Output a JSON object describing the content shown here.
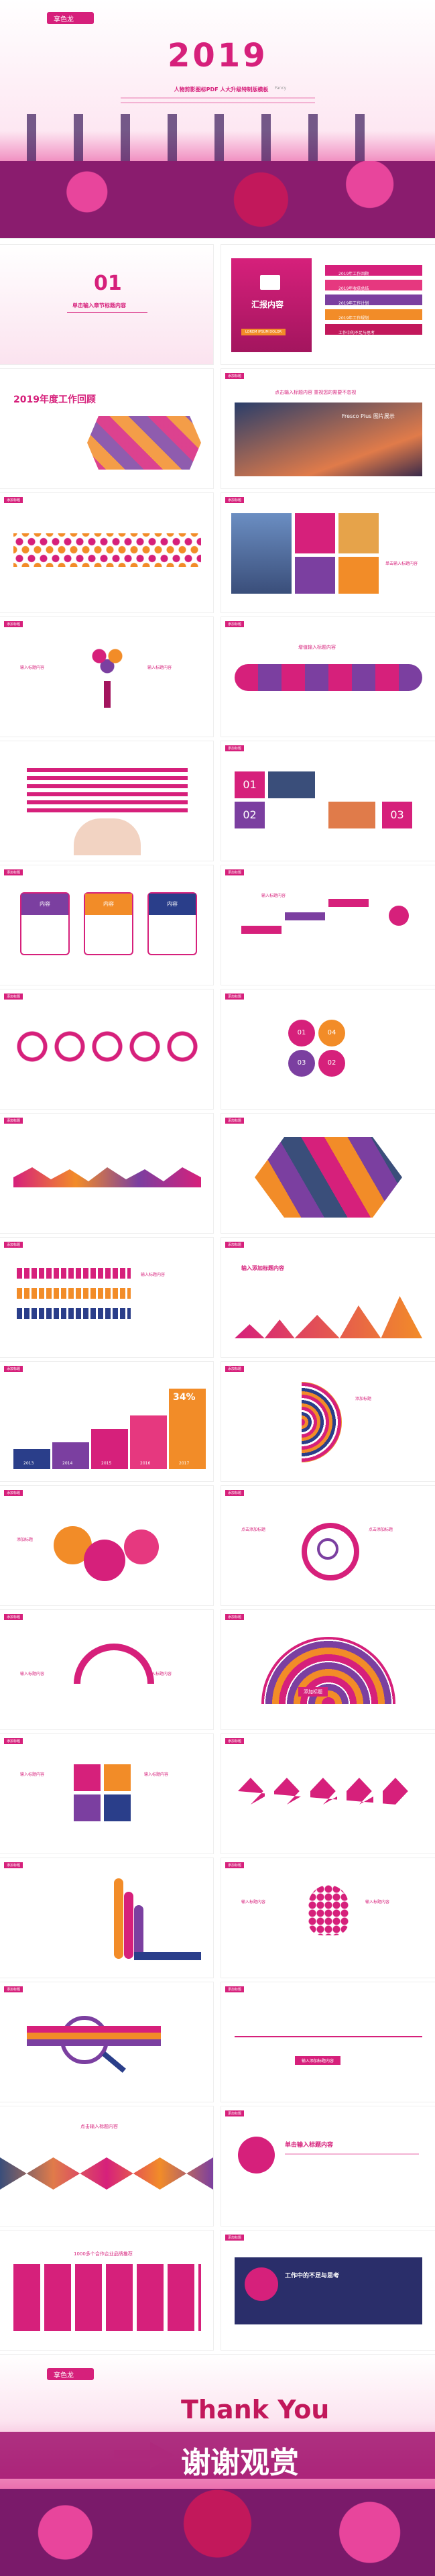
{
  "cover": {
    "brand": "享色龙",
    "year": "2019",
    "headline": "人物剪影图标PDF 人大升级特制版模板",
    "subline": "Fancy"
  },
  "toc": {
    "section_number": "01",
    "section_title": "单击输入章节标题内容",
    "report_label": "汇报内容",
    "report_sub": "LOREM IPSUM DOLOR",
    "items": [
      "2019年工作回顾",
      "2019年收获总结",
      "2019年工作计划",
      "2019年工作规划",
      "工作中的不足与思考"
    ]
  },
  "slide_tag": "添加标题",
  "labels": {
    "review_title": "2019年度工作回顾",
    "photo_caption": "点击输入标题内容 重视您的需要不忽视",
    "photo_sub": "Fresco Plus 图片展示",
    "input_title": "输入标题内容",
    "click_text": "单击输入标题内容",
    "content": "内容",
    "intro_title": "增值输入标题内容",
    "year_percent": "34%",
    "years": [
      "2013",
      "2014",
      "2015",
      "2016",
      "2017"
    ],
    "enter_title": "输入添加标题内容",
    "add_title": "添加标题",
    "numbers": [
      "01",
      "02",
      "03",
      "04"
    ],
    "flow_title": "流程图内容输入",
    "gear_label": "添加标题",
    "search_title": "点击添加标题",
    "photo_title": "点击输入标题内容",
    "thanks_en": "Thank You",
    "thanks_cn": "谢谢观赏",
    "partners": "1000多个合作企业品牌推荐",
    "reflection_title": "工作中的不足与思考",
    "map_title": "单击输入标题内容"
  }
}
